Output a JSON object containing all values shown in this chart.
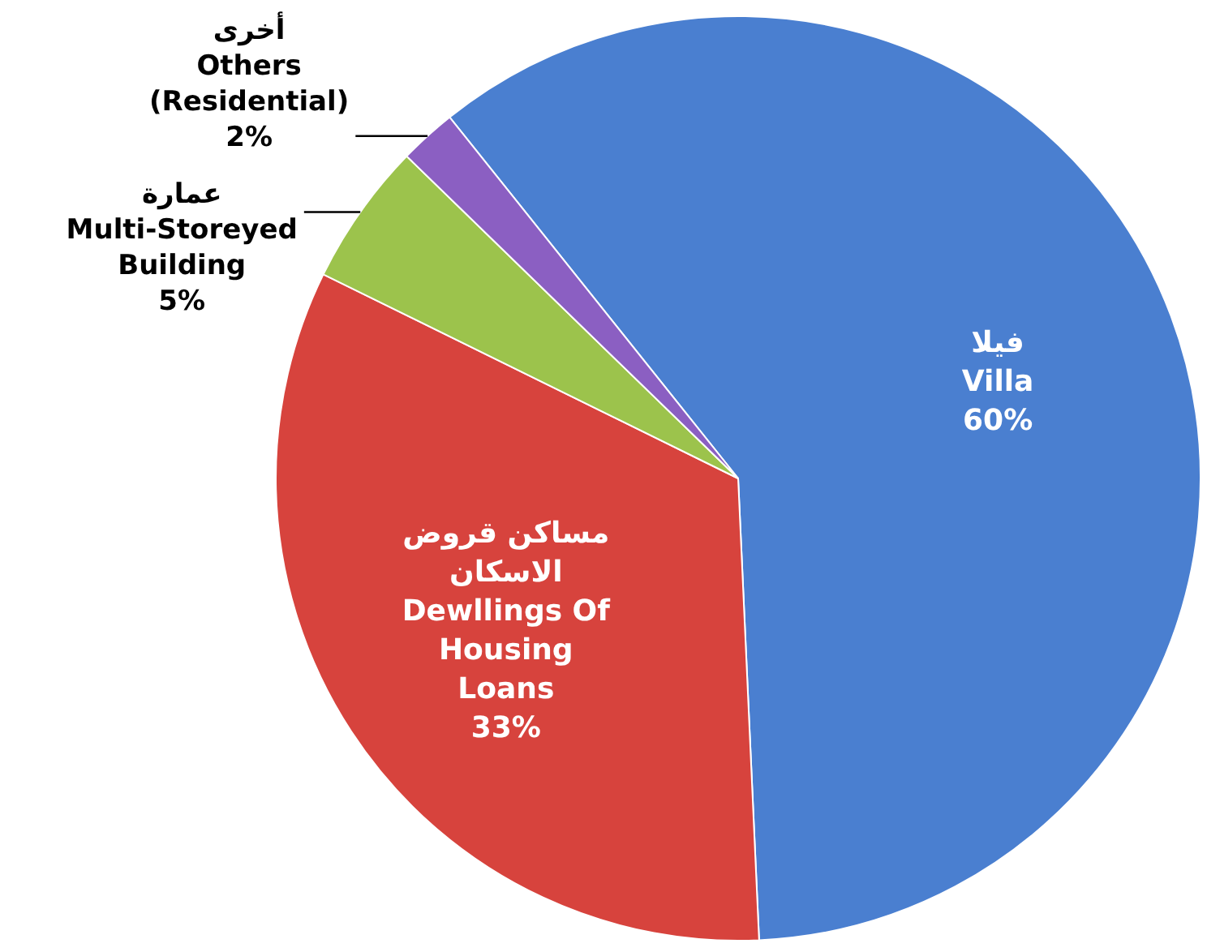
{
  "chart_data": {
    "type": "pie",
    "categories": [
      "فيلا\nVilla",
      "مساكن قروض\nالاسكان\nDewllings Of\nHousing\nLoans",
      "عمارة\nMulti-Storeyed\nBuilding",
      "أخرى\nOthers\n(Residential)"
    ],
    "values": [
      60,
      33,
      5,
      2
    ],
    "value_labels": [
      "60%",
      "33%",
      "5%",
      "2%"
    ],
    "colors": [
      "#4a7fd0",
      "#d7433d",
      "#9cc34c",
      "#8b5fc2"
    ]
  }
}
